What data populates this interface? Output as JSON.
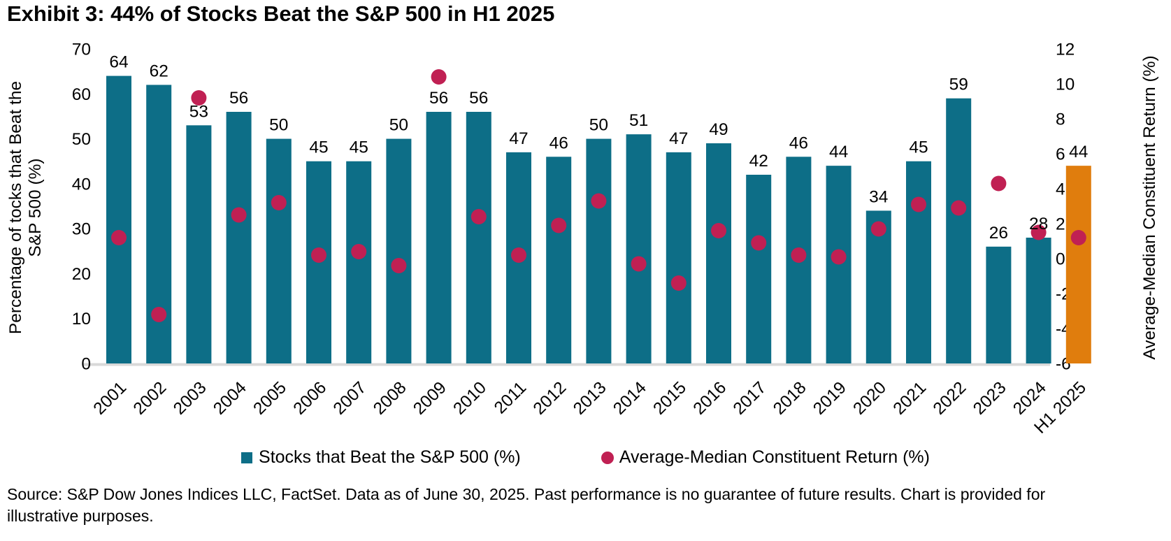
{
  "title": "Exhibit 3: 44% of Stocks Beat the S&P 500 in H1 2025",
  "source": "Source: S&P Dow Jones Indices LLC, FactSet. Data as of June 30, 2025. Past performance is no guarantee of future results. Chart is provided for illustrative purposes.",
  "legend": {
    "bars": "Stocks that Beat the S&P 500 (%)",
    "dots": "Average-Median Constituent Return (%)"
  },
  "colors": {
    "bar": "#0D6E87",
    "bar_highlight": "#E07D0D",
    "dot": "#C02053",
    "baseline": "#D9D9D9"
  },
  "chart_data": {
    "type": "bar",
    "subtype": "bar+scatter dual-axis combo",
    "title": "Exhibit 3: 44% of Stocks Beat the S&P 500 in H1 2025",
    "categories": [
      "2001",
      "2002",
      "2003",
      "2004",
      "2005",
      "2006",
      "2007",
      "2008",
      "2009",
      "2010",
      "2011",
      "2012",
      "2013",
      "2014",
      "2015",
      "2016",
      "2017",
      "2018",
      "2019",
      "2020",
      "2021",
      "2022",
      "2023",
      "2024",
      "H1 2025"
    ],
    "series": [
      {
        "name": "Stocks that Beat the S&P 500 (%)",
        "type": "bar",
        "axis": "left",
        "values": [
          64,
          62,
          53,
          56,
          50,
          45,
          45,
          50,
          56,
          56,
          47,
          46,
          50,
          51,
          47,
          49,
          42,
          46,
          44,
          34,
          45,
          59,
          26,
          28,
          44
        ]
      },
      {
        "name": "Average-Median Constituent Return (%)",
        "type": "scatter",
        "axis": "right",
        "values": [
          1.2,
          -3.2,
          9.2,
          2.5,
          3.2,
          0.2,
          0.4,
          -0.4,
          10.4,
          2.4,
          0.2,
          1.9,
          3.3,
          -0.3,
          -1.4,
          1.6,
          0.9,
          0.2,
          0.1,
          1.7,
          3.1,
          2.9,
          4.3,
          1.5,
          1.2
        ]
      }
    ],
    "highlight_category": "H1 2025",
    "data_labels_series": "Stocks that Beat the S&P 500 (%)",
    "left_axis": {
      "label": "Percentage of tocks that Beat the S&P 500 (%)",
      "label_lines": [
        "Percentage of tocks that Beat the",
        "S&P 500 (%)"
      ],
      "min": 0,
      "max": 70,
      "ticks": [
        70,
        60,
        50,
        40,
        30,
        20,
        10,
        0
      ]
    },
    "right_axis": {
      "label": "Average-Median Constituent Return (%)",
      "min": -6,
      "max": 12,
      "ticks": [
        12,
        10,
        8,
        6,
        4,
        2,
        0,
        -2,
        -4,
        -6
      ]
    },
    "grid": false,
    "legend_position": "bottom",
    "x_tick_rotation": -45
  }
}
